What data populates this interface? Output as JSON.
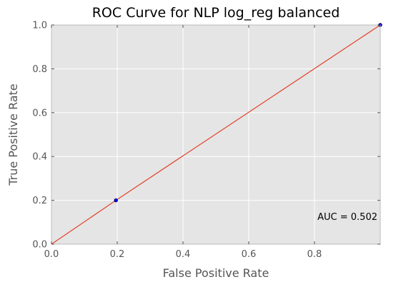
{
  "colors": {
    "plot_background": "#e5e5e5",
    "grid": "#ffffff",
    "line": "#e24a33",
    "marker": "#0000ff"
  },
  "chart_data": {
    "type": "line",
    "title": "ROC Curve for NLP log_reg balanced",
    "xlabel": "False Positive Rate",
    "ylabel": "True Positive Rate",
    "xlim": [
      0.0,
      1.0
    ],
    "ylim": [
      0.0,
      1.0
    ],
    "grid": true,
    "xticks": [
      0.0,
      0.2,
      0.4,
      0.6,
      0.8
    ],
    "xtick_labels": [
      "0.0",
      "0.2",
      "0.4",
      "0.6",
      "0.8"
    ],
    "yticks": [
      0.0,
      0.2,
      0.4,
      0.6,
      0.8,
      1.0
    ],
    "ytick_labels": [
      "0.0",
      "0.2",
      "0.4",
      "0.6",
      "0.8",
      "1.0"
    ],
    "series": [
      {
        "x": [
          0.0,
          0.196,
          1.0
        ],
        "y": [
          0.0,
          0.2,
          1.0
        ],
        "markers": [
          {
            "x": 0.196,
            "y": 0.2
          },
          {
            "x": 1.0,
            "y": 1.0
          }
        ]
      }
    ],
    "annotation": "AUC = 0.502"
  }
}
